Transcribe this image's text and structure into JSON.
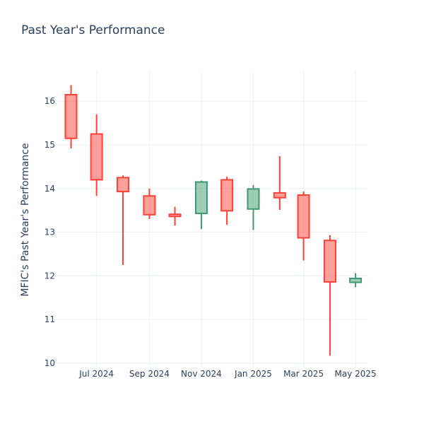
{
  "chart_data": {
    "type": "candlestick",
    "title": "Past Year's Performance",
    "ylabel": "MFIC's Past Year's Performance",
    "xlabel": "",
    "x_ticks": [
      {
        "date": "2024-07-01",
        "label": "Jul 2024"
      },
      {
        "date": "2024-09-01",
        "label": "Sep 2024"
      },
      {
        "date": "2024-11-01",
        "label": "Nov 2024"
      },
      {
        "date": "2025-01-01",
        "label": "Jan 2025"
      },
      {
        "date": "2025-03-01",
        "label": "Mar 2025"
      },
      {
        "date": "2025-05-01",
        "label": "May 2025"
      }
    ],
    "y_ticks": [
      10,
      11,
      12,
      13,
      14,
      15,
      16
    ],
    "xlim": [
      "2024-05-15",
      "2025-05-15"
    ],
    "ylim": [
      9.9,
      16.7
    ],
    "grid": true,
    "increasing_color": "#3d9970",
    "decreasing_color": "#ff4136",
    "candles": [
      {
        "date": "2024-06-01",
        "open": 16.15,
        "high": 16.37,
        "low": 14.92,
        "close": 15.15
      },
      {
        "date": "2024-07-01",
        "open": 15.25,
        "high": 15.7,
        "low": 13.83,
        "close": 14.2
      },
      {
        "date": "2024-08-01",
        "open": 14.25,
        "high": 14.3,
        "low": 12.25,
        "close": 13.93
      },
      {
        "date": "2024-09-01",
        "open": 13.83,
        "high": 14.0,
        "low": 13.3,
        "close": 13.4
      },
      {
        "date": "2024-10-01",
        "open": 13.41,
        "high": 13.58,
        "low": 13.15,
        "close": 13.36
      },
      {
        "date": "2024-11-01",
        "open": 13.43,
        "high": 14.18,
        "low": 13.07,
        "close": 14.15
      },
      {
        "date": "2024-12-01",
        "open": 14.2,
        "high": 14.27,
        "low": 13.17,
        "close": 13.49
      },
      {
        "date": "2025-01-01",
        "open": 13.53,
        "high": 14.08,
        "low": 13.05,
        "close": 13.99
      },
      {
        "date": "2025-02-01",
        "open": 13.9,
        "high": 14.74,
        "low": 13.51,
        "close": 13.79
      },
      {
        "date": "2025-03-01",
        "open": 13.85,
        "high": 13.93,
        "low": 12.35,
        "close": 12.87
      },
      {
        "date": "2025-04-01",
        "open": 12.81,
        "high": 12.93,
        "low": 10.17,
        "close": 11.86
      },
      {
        "date": "2025-05-01",
        "open": 11.85,
        "high": 12.06,
        "low": 11.74,
        "close": 11.94
      }
    ]
  }
}
